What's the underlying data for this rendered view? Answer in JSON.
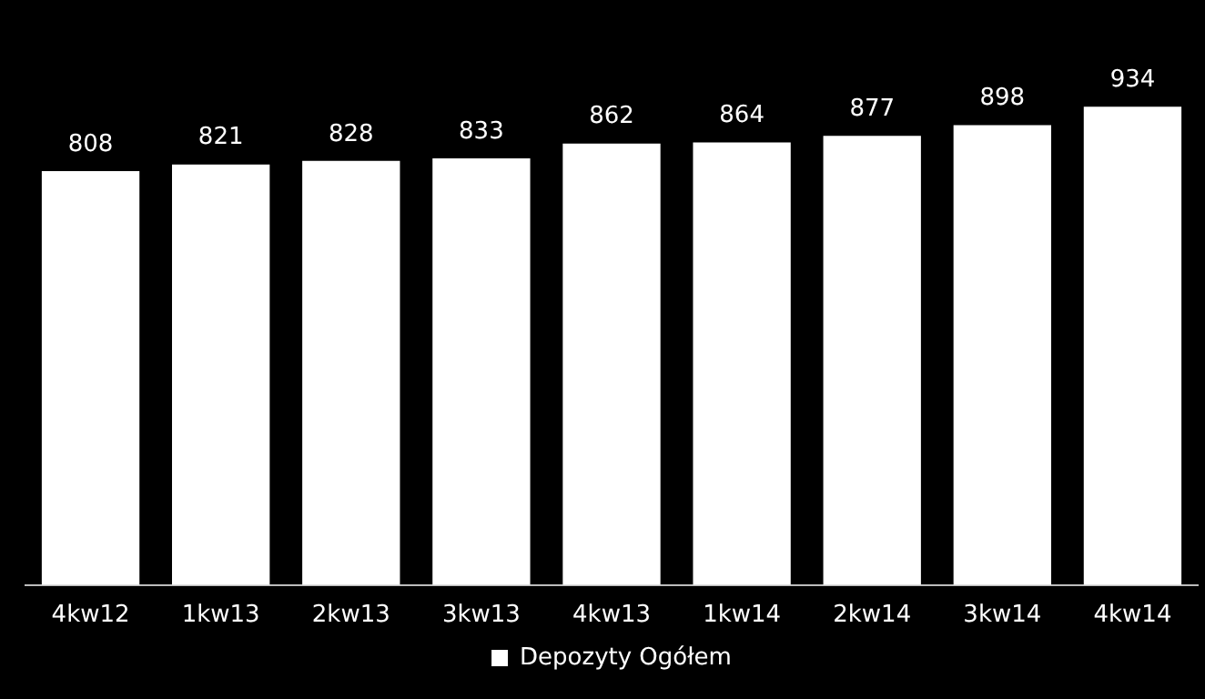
{
  "chart_data": {
    "type": "bar",
    "categories": [
      "4kw12",
      "1kw13",
      "2kw13",
      "3kw13",
      "4kw13",
      "1kw14",
      "2kw14",
      "3kw14",
      "4kw14"
    ],
    "series": [
      {
        "name": "Depozyty Ogółem",
        "color": "#ffffff",
        "values": [
          808,
          821,
          828,
          833,
          862,
          864,
          877,
          898,
          934
        ]
      }
    ],
    "data_labels": true,
    "legend": "bottom",
    "grid": false
  }
}
